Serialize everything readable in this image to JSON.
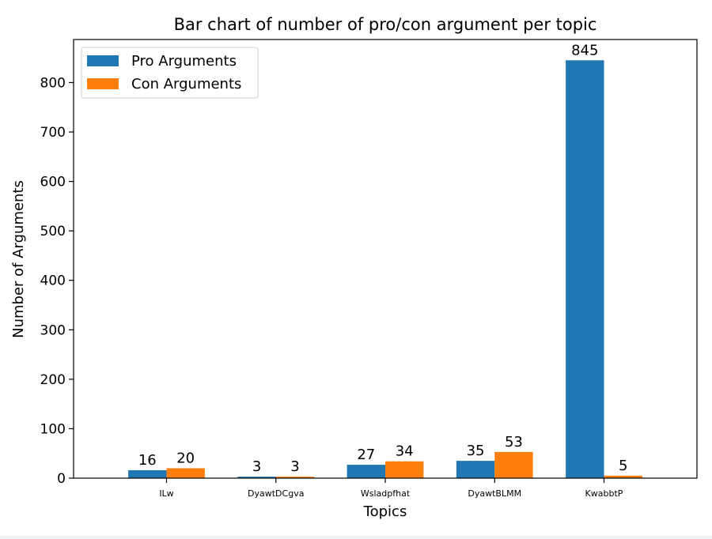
{
  "chart_data": {
    "type": "bar",
    "title": "Bar chart of number of pro/con argument per topic",
    "xlabel": "Topics",
    "ylabel": "Number of Arguments",
    "categories": [
      "ILw",
      "DyawtDCgva",
      "Wsladpfhat",
      "DyawtBLMM",
      "KwabbtP"
    ],
    "series": [
      {
        "name": "Pro Arguments",
        "values": [
          16,
          3,
          27,
          35,
          845
        ],
        "color": "#1f77b4"
      },
      {
        "name": "Con Arguments",
        "values": [
          20,
          3,
          34,
          53,
          5
        ],
        "color": "#ff7f0e"
      }
    ],
    "ylim": [
      0,
      887
    ],
    "yticks": [
      0,
      100,
      200,
      300,
      400,
      500,
      600,
      700,
      800
    ],
    "legend_position": "top-left",
    "grid": false,
    "data_labels": true
  }
}
